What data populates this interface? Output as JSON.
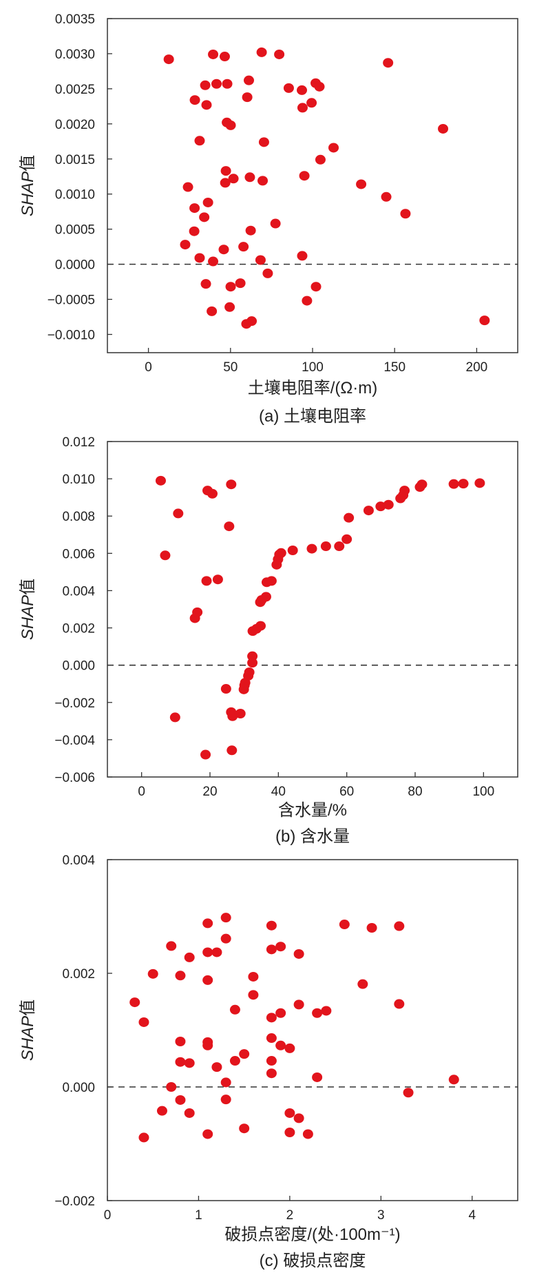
{
  "style": {
    "point_color": "#e2141c",
    "axis_color": "#333333",
    "zero_line_color": "#333333"
  },
  "chart_data": [
    {
      "type": "scatter",
      "caption": "(a) 土壤电阻率",
      "xlabel": "土壤电阻率/(Ω·m)",
      "ylabel_italic": "SHAP",
      "ylabel_suffix": "值",
      "xlim": [
        -25,
        225
      ],
      "ylim": [
        -0.00126,
        0.0035
      ],
      "xticks": [
        0,
        50,
        100,
        150,
        200
      ],
      "xtick_labels": [
        "0",
        "50",
        "100",
        "150",
        "200"
      ],
      "yticks": [
        -0.001,
        -0.0005,
        0,
        0.0005,
        0.001,
        0.0015,
        0.002,
        0.0025,
        0.003,
        0.0035
      ],
      "ytick_labels": [
        "−0.0010",
        "−0.0005",
        "0.0000",
        "0.0005",
        "0.0010",
        "0.0015",
        "0.0020",
        "0.0025",
        "0.0030",
        "0.0035"
      ],
      "reference_line_y": 0,
      "points": [
        [
          12.4,
          0.00292
        ],
        [
          39.4,
          0.00299
        ],
        [
          46.5,
          0.00296
        ],
        [
          69,
          0.00302
        ],
        [
          79.7,
          0.00299
        ],
        [
          146,
          0.00287
        ],
        [
          34.6,
          0.00255
        ],
        [
          41.5,
          0.00257
        ],
        [
          48,
          0.00257
        ],
        [
          61.2,
          0.00262
        ],
        [
          85.5,
          0.00251
        ],
        [
          93.5,
          0.00248
        ],
        [
          101.9,
          0.00258
        ],
        [
          104.2,
          0.00253
        ],
        [
          28.3,
          0.00234
        ],
        [
          35.4,
          0.00227
        ],
        [
          60.2,
          0.00238
        ],
        [
          99.4,
          0.0023
        ],
        [
          93.9,
          0.00223
        ],
        [
          47.8,
          0.00202
        ],
        [
          50.1,
          0.00198
        ],
        [
          179.5,
          0.00193
        ],
        [
          31.2,
          0.00176
        ],
        [
          70.4,
          0.00174
        ],
        [
          112.8,
          0.00166
        ],
        [
          104.8,
          0.00149
        ],
        [
          47.2,
          0.00133
        ],
        [
          51.8,
          0.00122
        ],
        [
          46.8,
          0.00116
        ],
        [
          61.8,
          0.00124
        ],
        [
          69.6,
          0.00119
        ],
        [
          95,
          0.00126
        ],
        [
          129.6,
          0.00114
        ],
        [
          24.1,
          0.0011
        ],
        [
          36.3,
          0.00088
        ],
        [
          28.1,
          0.0008
        ],
        [
          34,
          0.00067
        ],
        [
          144.9,
          0.00096
        ],
        [
          156.6,
          0.00072
        ],
        [
          77.4,
          0.00058
        ],
        [
          62.3,
          0.00048
        ],
        [
          27.9,
          0.00047
        ],
        [
          22.4,
          0.00028
        ],
        [
          45.9,
          0.00021
        ],
        [
          57.9,
          0.00025
        ],
        [
          31.2,
          9e-05
        ],
        [
          39.4,
          4e-05
        ],
        [
          68.3,
          6e-05
        ],
        [
          93.7,
          0.00012
        ],
        [
          72.7,
          -0.00013
        ],
        [
          35,
          -0.00028
        ],
        [
          50.1,
          -0.00032
        ],
        [
          56,
          -0.00027
        ],
        [
          102.1,
          -0.00032
        ],
        [
          96.6,
          -0.00052
        ],
        [
          38.6,
          -0.00067
        ],
        [
          49.5,
          -0.00061
        ],
        [
          59.7,
          -0.00085
        ],
        [
          62.9,
          -0.00081
        ],
        [
          204.8,
          -0.0008
        ]
      ]
    },
    {
      "type": "scatter",
      "caption": "(b) 含水量",
      "xlabel": "含水量/%",
      "ylabel_italic": "SHAP",
      "ylabel_suffix": "值",
      "xlim": [
        -10,
        110
      ],
      "ylim": [
        -0.006,
        0.012
      ],
      "xticks": [
        0,
        20,
        40,
        60,
        80,
        100
      ],
      "xtick_labels": [
        "0",
        "20",
        "40",
        "60",
        "80",
        "100"
      ],
      "yticks": [
        -0.006,
        -0.004,
        -0.002,
        0,
        0.002,
        0.004,
        0.006,
        0.008,
        0.01,
        0.012
      ],
      "ytick_labels": [
        "−0.006",
        "−0.004",
        "−0.002",
        "0.000",
        "0.002",
        "0.004",
        "0.006",
        "0.008",
        "0.010",
        "0.012"
      ],
      "reference_line_y": 0,
      "points": [
        [
          5.6,
          0.0099
        ],
        [
          6.9,
          0.00589
        ],
        [
          9.8,
          -0.0028
        ],
        [
          10.7,
          0.00814
        ],
        [
          15.6,
          0.00252
        ],
        [
          16.3,
          0.00284
        ],
        [
          18.7,
          -0.0048
        ],
        [
          19,
          0.00452
        ],
        [
          19.3,
          0.00937
        ],
        [
          20.7,
          0.0092
        ],
        [
          22.3,
          0.0046
        ],
        [
          24.7,
          -0.00127
        ],
        [
          25.6,
          0.00745
        ],
        [
          26.2,
          0.0097
        ],
        [
          26.2,
          -0.00252
        ],
        [
          26.6,
          -0.00274
        ],
        [
          26.4,
          -0.00457
        ],
        [
          28.9,
          -0.0026
        ],
        [
          29.9,
          -0.0013
        ],
        [
          30.1,
          -0.00108
        ],
        [
          30.3,
          -0.00094
        ],
        [
          31.2,
          -0.00057
        ],
        [
          31.5,
          -0.00038
        ],
        [
          32.4,
          0.00048
        ],
        [
          32.4,
          0.00013
        ],
        [
          32.5,
          0.00183
        ],
        [
          33.6,
          0.00195
        ],
        [
          34.8,
          0.00211
        ],
        [
          34.7,
          0.00338
        ],
        [
          35.1,
          0.0035
        ],
        [
          36.4,
          0.00367
        ],
        [
          36.6,
          0.00445
        ],
        [
          38,
          0.00452
        ],
        [
          39.5,
          0.00539
        ],
        [
          39.9,
          0.00568
        ],
        [
          40.3,
          0.00594
        ],
        [
          40.8,
          0.00602
        ],
        [
          44.2,
          0.00616
        ],
        [
          49.8,
          0.00625
        ],
        [
          53.9,
          0.00638
        ],
        [
          57.8,
          0.00638
        ],
        [
          60,
          0.00676
        ],
        [
          60.6,
          0.00791
        ],
        [
          66.4,
          0.0083
        ],
        [
          69.9,
          0.00852
        ],
        [
          72.2,
          0.00861
        ],
        [
          75.7,
          0.00895
        ],
        [
          76.5,
          0.00912
        ],
        [
          76.9,
          0.00937
        ],
        [
          81.4,
          0.00956
        ],
        [
          82,
          0.0097
        ],
        [
          91.3,
          0.00972
        ],
        [
          94.1,
          0.00974
        ],
        [
          98.9,
          0.00977
        ]
      ]
    },
    {
      "type": "scatter",
      "caption": "(c) 破损点密度",
      "xlabel": "破损点密度/(处·100m⁻¹)",
      "ylabel_italic": "SHAP",
      "ylabel_suffix": "值",
      "xlim": [
        0,
        4.5
      ],
      "ylim": [
        -0.002,
        0.004
      ],
      "xticks": [
        0,
        1,
        2,
        3,
        4
      ],
      "xtick_labels": [
        "0",
        "1",
        "2",
        "3",
        "4"
      ],
      "yticks": [
        -0.002,
        0,
        0.002,
        0.004
      ],
      "ytick_labels": [
        "−0.002",
        "0.000",
        "0.002",
        "0.004"
      ],
      "reference_line_y": 0,
      "points": [
        [
          0.3,
          0.00149
        ],
        [
          0.4,
          0.00114
        ],
        [
          0.4,
          -0.00089
        ],
        [
          0.5,
          0.00199
        ],
        [
          0.6,
          -0.00042
        ],
        [
          0.7,
          0.00248
        ],
        [
          0.7,
          0.0
        ],
        [
          0.8,
          0.00196
        ],
        [
          0.8,
          0.0008
        ],
        [
          0.8,
          0.00044
        ],
        [
          0.8,
          -0.00023
        ],
        [
          0.9,
          0.00228
        ],
        [
          0.9,
          0.00042
        ],
        [
          0.9,
          -0.00046
        ],
        [
          1.1,
          0.00288
        ],
        [
          1.1,
          0.00237
        ],
        [
          1.1,
          0.00188
        ],
        [
          1.1,
          0.00079
        ],
        [
          1.1,
          0.00073
        ],
        [
          1.1,
          -0.00083
        ],
        [
          1.2,
          0.00237
        ],
        [
          1.2,
          0.00035
        ],
        [
          1.3,
          0.00298
        ],
        [
          1.3,
          0.00261
        ],
        [
          1.3,
          8e-05
        ],
        [
          1.3,
          -0.00022
        ],
        [
          1.4,
          0.00136
        ],
        [
          1.4,
          0.00046
        ],
        [
          1.5,
          0.00058
        ],
        [
          1.5,
          -0.00073
        ],
        [
          1.6,
          0.00194
        ],
        [
          1.6,
          0.00162
        ],
        [
          1.8,
          0.00284
        ],
        [
          1.8,
          0.00242
        ],
        [
          1.8,
          0.00122
        ],
        [
          1.8,
          0.00086
        ],
        [
          1.8,
          0.00046
        ],
        [
          1.8,
          0.00024
        ],
        [
          1.9,
          0.00247
        ],
        [
          1.9,
          0.0013
        ],
        [
          1.9,
          0.00073
        ],
        [
          2.0,
          0.00068
        ],
        [
          2.0,
          -0.00046
        ],
        [
          2.0,
          -0.0008
        ],
        [
          2.1,
          0.00234
        ],
        [
          2.1,
          0.00145
        ],
        [
          2.1,
          -0.00055
        ],
        [
          2.2,
          -0.00083
        ],
        [
          2.3,
          0.0013
        ],
        [
          2.3,
          0.00017
        ],
        [
          2.4,
          0.00134
        ],
        [
          2.6,
          0.00286
        ],
        [
          2.8,
          0.00181
        ],
        [
          2.9,
          0.0028
        ],
        [
          3.2,
          0.00283
        ],
        [
          3.2,
          0.00146
        ],
        [
          3.3,
          -0.0001
        ],
        [
          3.8,
          0.00013
        ]
      ]
    }
  ]
}
